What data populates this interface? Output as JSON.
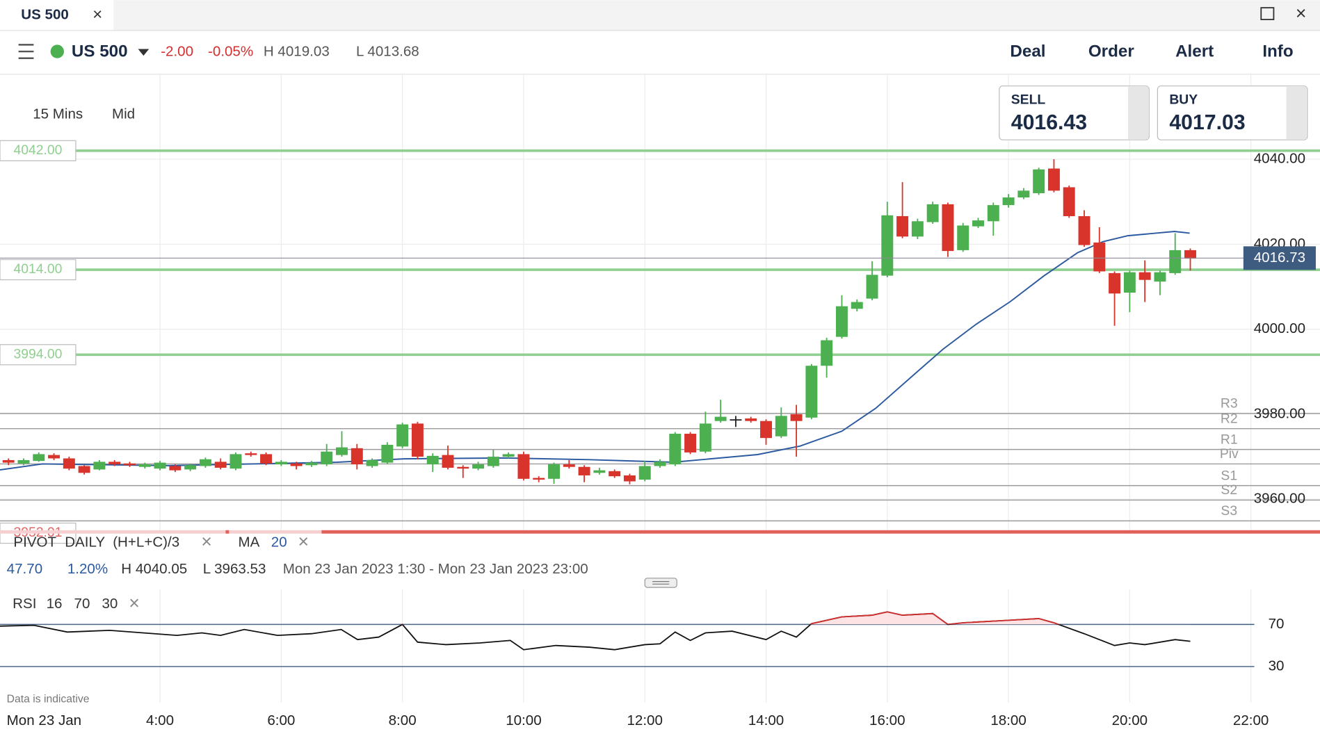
{
  "tab": {
    "title": "US 500"
  },
  "toolbar": {
    "market": "US 500",
    "change": "-2.00",
    "change_pct": "-0.05%",
    "high": "H 4019.03",
    "low": "L 4013.68",
    "actions": [
      "Deal",
      "Order",
      "Alert",
      "Info"
    ]
  },
  "settings": {
    "interval": "15 Mins",
    "price": "Mid"
  },
  "quote": {
    "sell_label": "SELL",
    "sell": "4016.43",
    "buy_label": "BUY",
    "buy": "4017.03"
  },
  "indicators": {
    "pivot": [
      "PIVOT",
      "DAILY",
      "(H+L+C)/3"
    ],
    "ma_period": "20",
    "rsi_params": [
      "16",
      "70",
      "30"
    ]
  },
  "stats": [
    "47.70",
    "1.20%",
    "H 4040.05",
    "L 3963.53",
    "Mon 23 Jan 2023 1:30 - Mon 23 Jan 2023 23:00"
  ],
  "footer": {
    "note": "Data is indicative",
    "date": "Mon 23 Jan"
  },
  "chart_data": [
    {
      "type": "candlestick",
      "x": [
        1.5,
        1.75,
        2,
        2.25,
        2.5,
        2.75,
        3,
        3.25,
        3.5,
        3.75,
        4,
        4.25,
        4.5,
        4.75,
        5,
        5.25,
        5.5,
        5.75,
        6,
        6.25,
        6.5,
        6.75,
        7,
        7.25,
        7.5,
        7.75,
        8,
        8.25,
        8.5,
        8.75,
        9,
        9.25,
        9.5,
        9.75,
        10,
        10.25,
        10.5,
        10.75,
        11,
        11.25,
        11.5,
        11.75,
        12,
        12.25,
        12.5,
        12.75,
        13,
        13.25,
        13.5,
        13.75,
        14,
        14.25,
        14.5,
        14.75,
        15,
        15.25,
        15.5,
        15.75,
        16,
        16.25,
        16.5,
        16.75,
        17,
        17.25,
        17.5,
        17.75,
        18,
        18.25,
        18.5,
        18.75,
        19,
        19.25,
        19.5,
        19.75,
        20,
        20.25,
        20.5,
        20.75,
        21
      ],
      "open": [
        3969.2,
        3968.4,
        3969.0,
        3970.4,
        3969.6,
        3967.8,
        3967.0,
        3968.8,
        3968.4,
        3967.6,
        3967.2,
        3967.8,
        3967.0,
        3967.8,
        3968.8,
        3967.2,
        3970.8,
        3970.6,
        3968.2,
        3968.4,
        3968.0,
        3968.2,
        3970.4,
        3972.0,
        3967.8,
        3968.6,
        3972.4,
        3977.8,
        3968.2,
        3970.4,
        3967.6,
        3967.2,
        3967.8,
        3970.0,
        3970.6,
        3965.0,
        3964.8,
        3968.2,
        3967.6,
        3966.2,
        3966.6,
        3965.6,
        3964.6,
        3967.8,
        3968.2,
        3975.4,
        3971.2,
        3978.4,
        3978.8,
        3979.0,
        3978.4,
        3974.8,
        3980.0,
        3979.2,
        3991.4,
        3998.2,
        4004.8,
        4007.2,
        4012.6,
        4026.6,
        4021.8,
        4025.2,
        4029.4,
        4018.6,
        4024.2,
        4025.4,
        4029.2,
        4031.0,
        4032.0,
        4037.8,
        4033.4,
        4026.6,
        4020.4,
        4013.2,
        4008.6,
        4013.4,
        4011.2,
        4013.2,
        4018.6
      ],
      "high": [
        3969.6,
        3969.6,
        3971.0,
        3970.8,
        3970.0,
        3968.0,
        3969.2,
        3969.2,
        3968.8,
        3968.6,
        3969.0,
        3968.2,
        3968.4,
        3969.8,
        3969.6,
        3971.0,
        3971.2,
        3971.0,
        3969.2,
        3968.8,
        3969.0,
        3973.0,
        3976.0,
        3973.0,
        3969.6,
        3973.4,
        3978.0,
        3978.2,
        3970.8,
        3972.6,
        3968.0,
        3968.8,
        3971.6,
        3971.0,
        3971.2,
        3965.4,
        3968.6,
        3969.2,
        3968.0,
        3967.4,
        3967.0,
        3966.0,
        3969.0,
        3969.4,
        3975.8,
        3975.8,
        3980.6,
        3983.4,
        3979.6,
        3979.4,
        3978.8,
        3981.6,
        3982.2,
        3991.8,
        3998.0,
        4008.0,
        4007.0,
        4016.0,
        4030.0,
        4034.6,
        4026.0,
        4030.0,
        4029.8,
        4025.0,
        4026.2,
        4029.8,
        4031.8,
        4033.2,
        4038.0,
        4040.0,
        4033.8,
        4028.0,
        4024.0,
        4013.6,
        4013.8,
        4016.2,
        4013.8,
        4022.6,
        4019.0
      ],
      "low": [
        3968.0,
        3968.0,
        3968.8,
        3969.2,
        3966.8,
        3965.8,
        3966.8,
        3967.8,
        3967.6,
        3967.2,
        3966.8,
        3966.4,
        3966.6,
        3967.4,
        3967.0,
        3966.8,
        3970.0,
        3968.0,
        3967.8,
        3967.0,
        3967.6,
        3967.8,
        3970.0,
        3967.0,
        3967.4,
        3968.2,
        3972.0,
        3969.4,
        3966.4,
        3967.0,
        3965.0,
        3966.8,
        3967.4,
        3969.6,
        3964.4,
        3964.0,
        3963.6,
        3967.2,
        3964.0,
        3965.8,
        3965.0,
        3963.5,
        3964.2,
        3967.4,
        3967.8,
        3970.6,
        3970.8,
        3978.0,
        3977.0,
        3978.0,
        3972.8,
        3974.4,
        3970.0,
        3978.8,
        3988.6,
        3997.8,
        4004.2,
        4006.8,
        4012.2,
        4021.4,
        4021.2,
        4024.8,
        4017.0,
        4018.2,
        4023.8,
        4022.0,
        4028.6,
        4030.6,
        4031.6,
        4032.2,
        4026.2,
        4019.4,
        4013.2,
        4000.8,
        4004.0,
        4006.4,
        4008.0,
        4012.8,
        4013.8
      ],
      "close": [
        3968.6,
        3969.2,
        3970.6,
        3969.6,
        3967.2,
        3966.2,
        3968.8,
        3968.2,
        3968.0,
        3968.2,
        3968.6,
        3966.8,
        3968.0,
        3969.4,
        3967.4,
        3970.6,
        3970.4,
        3968.4,
        3968.8,
        3967.8,
        3968.6,
        3971.2,
        3972.2,
        3968.2,
        3969.2,
        3972.8,
        3977.6,
        3970.0,
        3970.2,
        3967.4,
        3967.2,
        3968.2,
        3970.0,
        3970.6,
        3964.8,
        3964.6,
        3968.2,
        3967.6,
        3965.6,
        3966.8,
        3965.4,
        3964.2,
        3967.8,
        3968.8,
        3975.4,
        3971.0,
        3977.8,
        3979.4,
        3978.8,
        3978.4,
        3974.4,
        3979.6,
        3978.4,
        3991.4,
        3997.4,
        4005.4,
        4006.4,
        4012.8,
        4026.8,
        4021.8,
        4025.4,
        4029.4,
        4018.4,
        4024.4,
        4025.6,
        4029.2,
        4031.0,
        4032.6,
        4037.6,
        4032.6,
        4026.6,
        4019.8,
        4013.6,
        4008.4,
        4013.4,
        4011.6,
        4013.4,
        4018.6,
        4016.6
      ],
      "up_color": "#4caf50",
      "down_color": "#d9342b",
      "flat_color": "#222222",
      "xlim": [
        1.36,
        23.14
      ],
      "xticks": [
        {
          "value": 4,
          "label": "4:00"
        },
        {
          "value": 6,
          "label": "6:00"
        },
        {
          "value": 8,
          "label": "8:00"
        },
        {
          "value": 10,
          "label": "10:00"
        },
        {
          "value": 12,
          "label": "12:00"
        },
        {
          "value": 14,
          "label": "14:00"
        },
        {
          "value": 16,
          "label": "16:00"
        },
        {
          "value": 18,
          "label": "18:00"
        },
        {
          "value": 20,
          "label": "20:00"
        },
        {
          "value": 22,
          "label": "22:00"
        }
      ],
      "ylim": [
        3952.7,
        4060
      ],
      "yticks": [
        {
          "value": 4040,
          "label": "4040.00"
        },
        {
          "value": 4020,
          "label": "4020.00"
        },
        {
          "value": 4000,
          "label": "4000.00"
        },
        {
          "value": 3980,
          "label": "3980.00"
        },
        {
          "value": 3960,
          "label": "3960.00"
        }
      ],
      "grid": true,
      "series": [
        {
          "name": "MA",
          "color": "#2c5aa0",
          "x": [
            1.36,
            2.06,
            4.14,
            6.92,
            8.03,
            9.69,
            11.08,
            12.47,
            13.86,
            14.56,
            15.25,
            15.81,
            16.36,
            16.92,
            17.47,
            18.03,
            18.58,
            19.14,
            19.56,
            19.97,
            20.74,
            20.99
          ],
          "values": [
            3966.9,
            3968.3,
            3967.9,
            3968.7,
            3969.5,
            3969.7,
            3969.3,
            3968.7,
            3970.5,
            3972.5,
            3976.0,
            3981.4,
            3988.3,
            3995.3,
            4001.2,
            4006.5,
            4012.5,
            4018.0,
            4020.6,
            4022.0,
            4023.0,
            4022.6
          ]
        }
      ],
      "levels": [
        {
          "value": 4042,
          "label": "4042.00",
          "color": "#8fcf8f"
        },
        {
          "value": 4014,
          "label": "4014.00",
          "color": "#8fcf8f"
        },
        {
          "value": 3994,
          "label": "3994.00",
          "color": "#8fcf8f"
        },
        {
          "value": 3952.01,
          "label": "3952.01",
          "color": "#e06666"
        }
      ],
      "pivots": [
        {
          "name": "R3",
          "value": 3980.2
        },
        {
          "name": "R2",
          "value": 3976.6
        },
        {
          "name": "R1",
          "value": 3971.7
        },
        {
          "name": "Piv",
          "value": 3968.3
        },
        {
          "name": "S1",
          "value": 3963.2
        },
        {
          "name": "S2",
          "value": 3959.8
        },
        {
          "name": "S3",
          "value": 3954.9
        }
      ],
      "last_price": {
        "value": 4016.73,
        "label": "4016.73",
        "color": "#3e5b80"
      }
    },
    {
      "type": "line",
      "title": "RSI",
      "x": [
        1.36,
        1.92,
        2.47,
        3.17,
        3.72,
        4.28,
        4.69,
        5.0,
        5.39,
        5.94,
        6.5,
        6.99,
        7.26,
        7.61,
        8.0,
        8.25,
        8.72,
        9.28,
        9.78,
        10.0,
        10.53,
        11.08,
        11.5,
        12.0,
        12.25,
        12.5,
        12.75,
        13.0,
        13.44,
        14.0,
        14.25,
        14.5,
        14.75,
        15.25,
        15.75,
        16.0,
        16.25,
        16.75,
        17.0,
        17.25,
        18.0,
        18.5,
        18.75,
        19.25,
        19.75,
        20.0,
        20.25,
        20.75,
        21.0
      ],
      "values": [
        68.4,
        69.2,
        62.8,
        64.4,
        62.0,
        59.6,
        62.0,
        59.6,
        65.2,
        59.6,
        61.2,
        65.2,
        55.6,
        58.0,
        70.0,
        53.2,
        50.8,
        52.4,
        54.8,
        46.0,
        50.0,
        48.4,
        46.0,
        50.8,
        51.6,
        62.8,
        54.8,
        62.0,
        63.6,
        55.6,
        63.6,
        58.0,
        70.8,
        77.2,
        78.8,
        82.0,
        78.8,
        80.4,
        70.0,
        71.6,
        74.0,
        75.6,
        71.6,
        61.2,
        50.0,
        52.4,
        50.8,
        55.6,
        54.0
      ],
      "color": "#111111",
      "overbought": 70,
      "overbought_color": "#d32f2f",
      "ylim": [
        0,
        100
      ],
      "yticks": [
        30,
        70
      ],
      "tick_color": "#3e5b80"
    }
  ]
}
